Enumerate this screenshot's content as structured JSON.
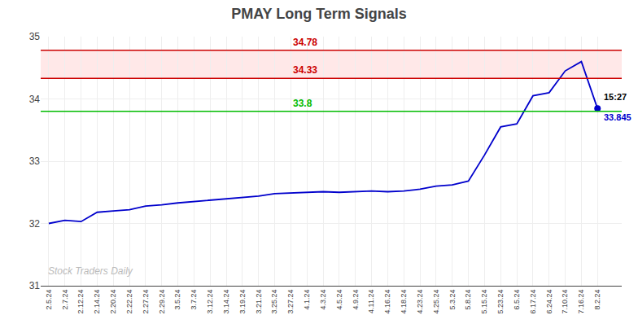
{
  "chart_data": {
    "type": "line",
    "title": "PMAY Long Term Signals",
    "categories": [
      "2.5.24",
      "2.7.24",
      "2.12.24",
      "2.14.24",
      "2.20.24",
      "2.22.24",
      "2.27.24",
      "2.29.24",
      "3.5.24",
      "3.7.24",
      "3.12.24",
      "3.14.24",
      "3.19.24",
      "3.21.24",
      "3.25.24",
      "3.27.24",
      "4.1.24",
      "4.3.24",
      "4.5.24",
      "4.9.24",
      "4.11.24",
      "4.16.24",
      "4.18.24",
      "4.23.24",
      "4.25.24",
      "5.3.24",
      "5.8.24",
      "5.15.24",
      "5.23.24",
      "6.5.24",
      "6.17.24",
      "6.24.24",
      "7.10.24",
      "7.16.24",
      "8.2.24"
    ],
    "values": [
      32.0,
      32.05,
      32.03,
      32.18,
      32.2,
      32.22,
      32.28,
      32.3,
      32.33,
      32.35,
      32.38,
      32.4,
      32.42,
      32.44,
      32.48,
      32.49,
      32.5,
      32.51,
      32.5,
      32.51,
      32.52,
      32.51,
      32.52,
      32.55,
      32.6,
      32.62,
      32.68,
      33.1,
      33.55,
      33.6,
      34.05,
      34.1,
      34.45,
      34.6,
      33.845
    ],
    "color": "#0000cc",
    "ylim": [
      31,
      35
    ],
    "yticks": [
      31,
      32,
      33,
      34,
      35
    ],
    "grid": true,
    "hlines": [
      {
        "value": 33.8,
        "label": "33.8",
        "color": "#00bb00"
      },
      {
        "value": 34.33,
        "label": "34.33",
        "color": "#cc0000"
      },
      {
        "value": 34.78,
        "label": "34.78",
        "color": "#cc0000"
      }
    ],
    "band": {
      "from": 34.33,
      "to": 34.78,
      "color": "#ffcccc"
    },
    "last_point_labels": [
      "15:27",
      "33.845"
    ],
    "watermark": "Stock Traders Daily"
  }
}
